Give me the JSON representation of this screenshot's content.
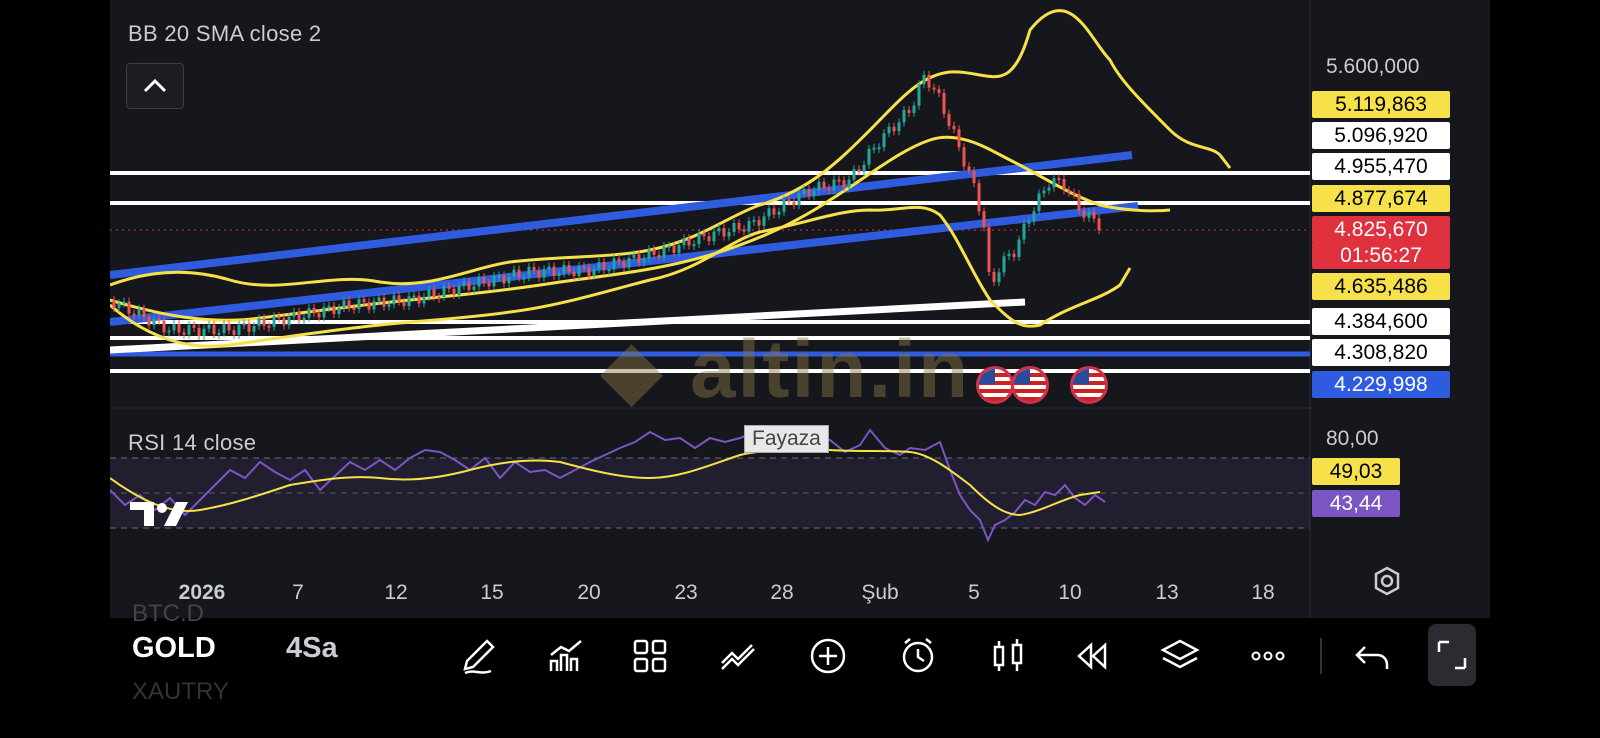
{
  "chart": {
    "indicator_bb": "BB 20 SMA close 2",
    "indicator_rsi": "RSI 14 close",
    "symbol": "GOLD",
    "symbol_above": "BTC.D",
    "symbol_below": "XAUTRY",
    "interval": "4Sa",
    "watermark": "altin.in",
    "user_tag": "Fayaza",
    "countdown": "01:56:27",
    "axis_top": "5.600,000",
    "rsi_level": "80,00"
  },
  "price_tags": [
    {
      "value": "5.119,863",
      "bg": "#f7e14a",
      "fg": "#000000"
    },
    {
      "value": "5.096,920",
      "bg": "#ffffff",
      "fg": "#000000"
    },
    {
      "value": "4.955,470",
      "bg": "#ffffff",
      "fg": "#000000"
    },
    {
      "value": "4.877,674",
      "bg": "#f7e14a",
      "fg": "#000000"
    },
    {
      "value": "4.825,670",
      "bg": "#e0313e",
      "fg": "#ffffff"
    },
    {
      "value": "4.635,486",
      "bg": "#f7e14a",
      "fg": "#000000"
    },
    {
      "value": "4.384,600",
      "bg": "#ffffff",
      "fg": "#000000"
    },
    {
      "value": "4.308,820",
      "bg": "#ffffff",
      "fg": "#000000"
    },
    {
      "value": "4.229,998",
      "bg": "#2f5bdf",
      "fg": "#ffffff"
    }
  ],
  "rsi_tags": [
    {
      "value": "49,03",
      "bg": "#f7e14a",
      "fg": "#000000"
    },
    {
      "value": "43,44",
      "bg": "#7c55c4",
      "fg": "#ffffff"
    }
  ],
  "x_axis": [
    "2026",
    "7",
    "12",
    "15",
    "20",
    "23",
    "28",
    "Şub",
    "5",
    "10",
    "13",
    "18"
  ],
  "toolbar_icons": [
    "pencil-icon",
    "indicators-icon",
    "templates-icon",
    "compare-icon",
    "add-icon",
    "alert-icon",
    "chart-type-icon",
    "replay-icon",
    "layers-icon",
    "more-icon",
    "undo-icon",
    "fullscreen-icon"
  ],
  "colors": {
    "up": "#26a69a",
    "down": "#ef5350",
    "bb": "#f7e14a",
    "trend": "#2f5bdf",
    "level": "#ffffff",
    "rsi": "#7c55c4"
  }
}
